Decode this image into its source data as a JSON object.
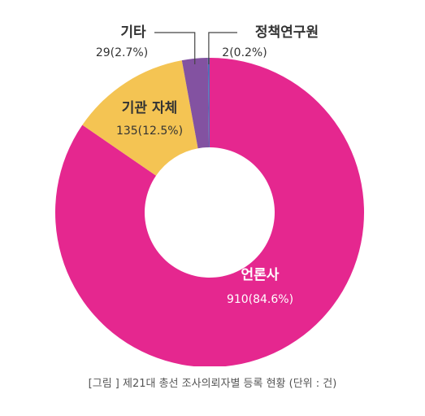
{
  "chart_data": {
    "type": "pie",
    "donut": true,
    "categories": [
      "언론사",
      "기관 자체",
      "기타",
      "정책연구원"
    ],
    "values": [
      910,
      135,
      29,
      2
    ],
    "percent": [
      84.6,
      12.5,
      2.7,
      0.2
    ],
    "value_labels": [
      "910(84.6%)",
      "135(12.5%)",
      "29(2.7%)",
      "2(0.2%)"
    ],
    "colors": [
      "#e5278f",
      "#f4c453",
      "#8352a1",
      "#4f6fb6"
    ],
    "label_placement": [
      "inside",
      "inside",
      "callout-left",
      "callout-right"
    ],
    "title": "",
    "legend": "none"
  },
  "caption": "[그림 ] 제21대 총선 조사의뢰자별 등록 현황 (단위 : 건)"
}
